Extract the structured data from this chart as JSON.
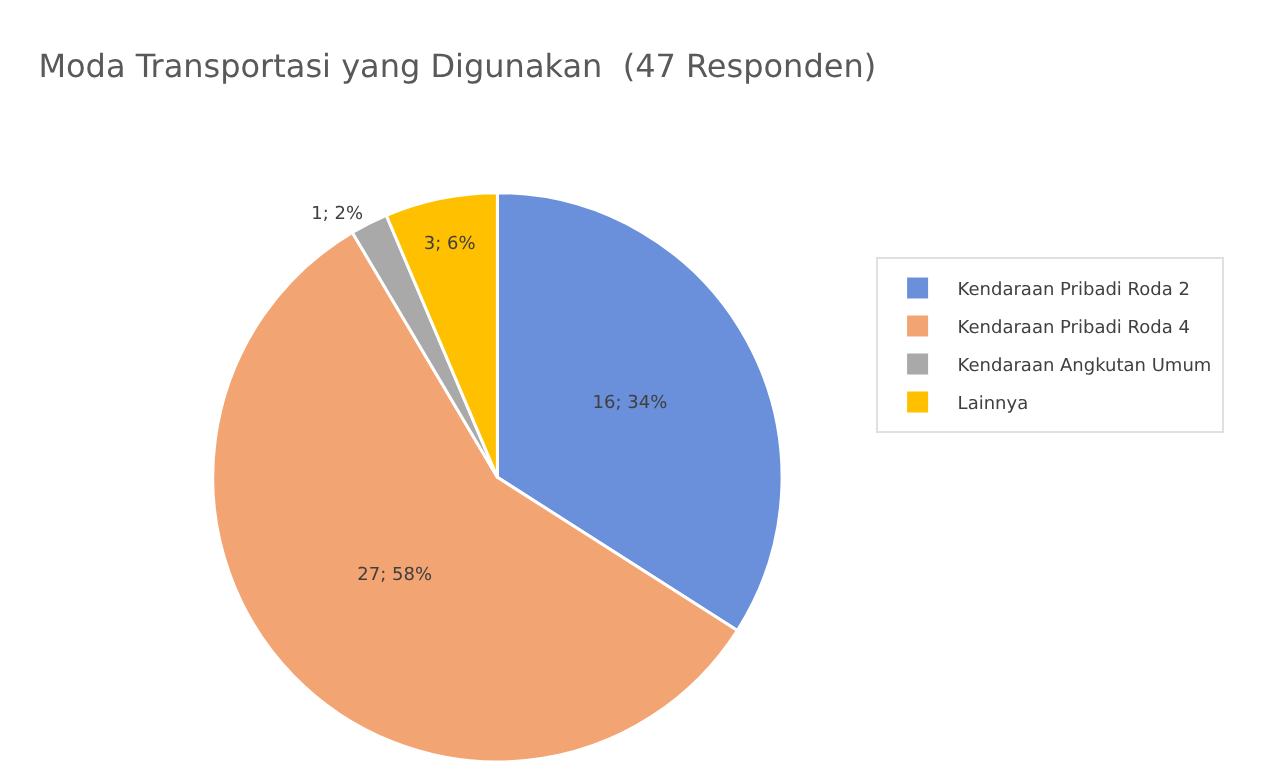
{
  "chart_data": {
    "type": "pie",
    "title": "Moda Transportasi yang Digunakan  (47 Responden)",
    "categories": [
      "Kendaraan Pribadi Roda 2",
      "Kendaraan Pribadi Roda 4",
      "Kendaraan Angkutan Umum",
      "Lainnya"
    ],
    "values": [
      16,
      27,
      1,
      3
    ],
    "value_labels": [
      "16; 34%",
      "27; 58%",
      "1; 2%",
      "3; 6%"
    ],
    "colors": [
      "#6a90db",
      "#f2a472",
      "#a9a9a9",
      "#ffc000"
    ],
    "legend": "right"
  }
}
